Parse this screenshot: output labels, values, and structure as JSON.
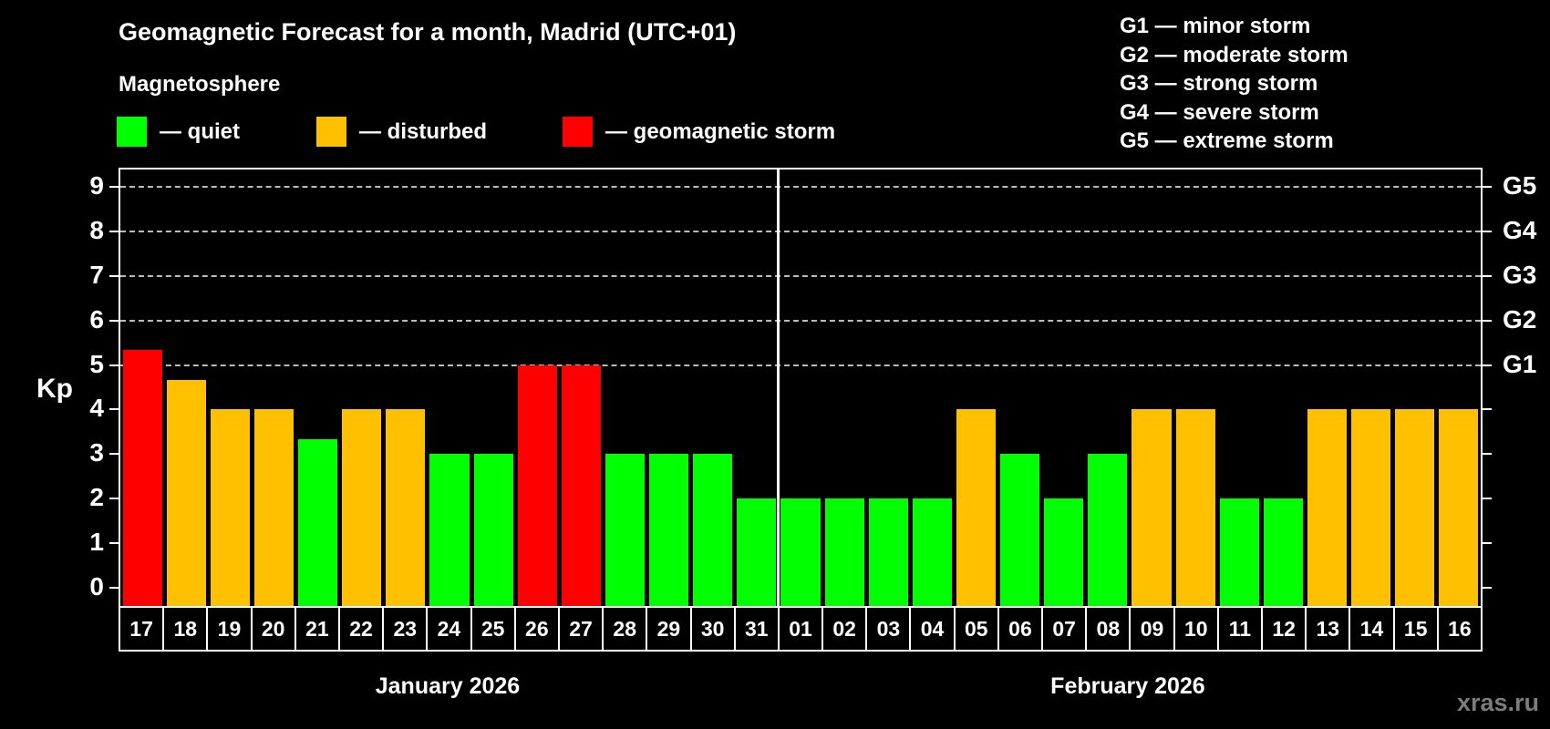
{
  "title": "Geomagnetic Forecast for a month, Madrid (UTC+01)",
  "subtitle": "Magnetosphere",
  "legend": {
    "items": [
      {
        "label": "— quiet",
        "status": "quiet"
      },
      {
        "label": "— disturbed",
        "status": "disturbed"
      },
      {
        "label": "— geomagnetic storm",
        "status": "storm"
      }
    ]
  },
  "storm_scale": {
    "items": [
      "G1 — minor storm",
      "G2 — moderate storm",
      "G3 — strong storm",
      "G4 — severe storm",
      "G5 — extreme storm"
    ]
  },
  "colors": {
    "quiet": "#00ff00",
    "disturbed": "#ffc000",
    "storm": "#ff0000",
    "background": "#000000",
    "text": "#ffffff",
    "grid": "#bbbbbb",
    "watermark": "#7d7d7d"
  },
  "watermark": "xras.ru",
  "chart_data": {
    "type": "bar",
    "title": "Geomagnetic Forecast for a month, Madrid (UTC+01)",
    "ylabel": "Kp",
    "ylim": [
      -0.41,
      9.39
    ],
    "y_ticks": [
      0,
      1,
      2,
      3,
      4,
      5,
      6,
      7,
      8,
      9
    ],
    "gridlines_at": [
      5,
      6,
      7,
      8,
      9
    ],
    "grid": "horizontal dashed lines at storm levels G1–G5 (Kp 5–9)",
    "legend_position": "top",
    "right_axis_labels": [
      {
        "label": "G1",
        "kp": 5
      },
      {
        "label": "G2",
        "kp": 6
      },
      {
        "label": "G3",
        "kp": 7
      },
      {
        "label": "G4",
        "kp": 8
      },
      {
        "label": "G5",
        "kp": 9
      }
    ],
    "months": [
      {
        "label": "January 2026",
        "days": 15
      },
      {
        "label": "February 2026",
        "days": 16
      }
    ],
    "categories": [
      "17",
      "18",
      "19",
      "20",
      "21",
      "22",
      "23",
      "24",
      "25",
      "26",
      "27",
      "28",
      "29",
      "30",
      "31",
      "01",
      "02",
      "03",
      "04",
      "05",
      "06",
      "07",
      "08",
      "09",
      "10",
      "11",
      "12",
      "13",
      "14",
      "15",
      "16"
    ],
    "values": [
      5.33,
      4.67,
      4,
      4,
      3.33,
      4,
      4,
      3,
      3,
      5,
      5,
      3,
      3,
      3,
      2,
      2,
      2,
      2,
      2,
      4,
      3,
      2,
      3,
      4,
      4,
      2,
      2,
      4,
      4,
      4,
      4
    ],
    "statuses": [
      "storm",
      "disturbed",
      "disturbed",
      "disturbed",
      "quiet",
      "disturbed",
      "disturbed",
      "quiet",
      "quiet",
      "storm",
      "storm",
      "quiet",
      "quiet",
      "quiet",
      "quiet",
      "quiet",
      "quiet",
      "quiet",
      "quiet",
      "disturbed",
      "quiet",
      "quiet",
      "quiet",
      "disturbed",
      "disturbed",
      "quiet",
      "quiet",
      "disturbed",
      "disturbed",
      "disturbed",
      "disturbed"
    ]
  }
}
